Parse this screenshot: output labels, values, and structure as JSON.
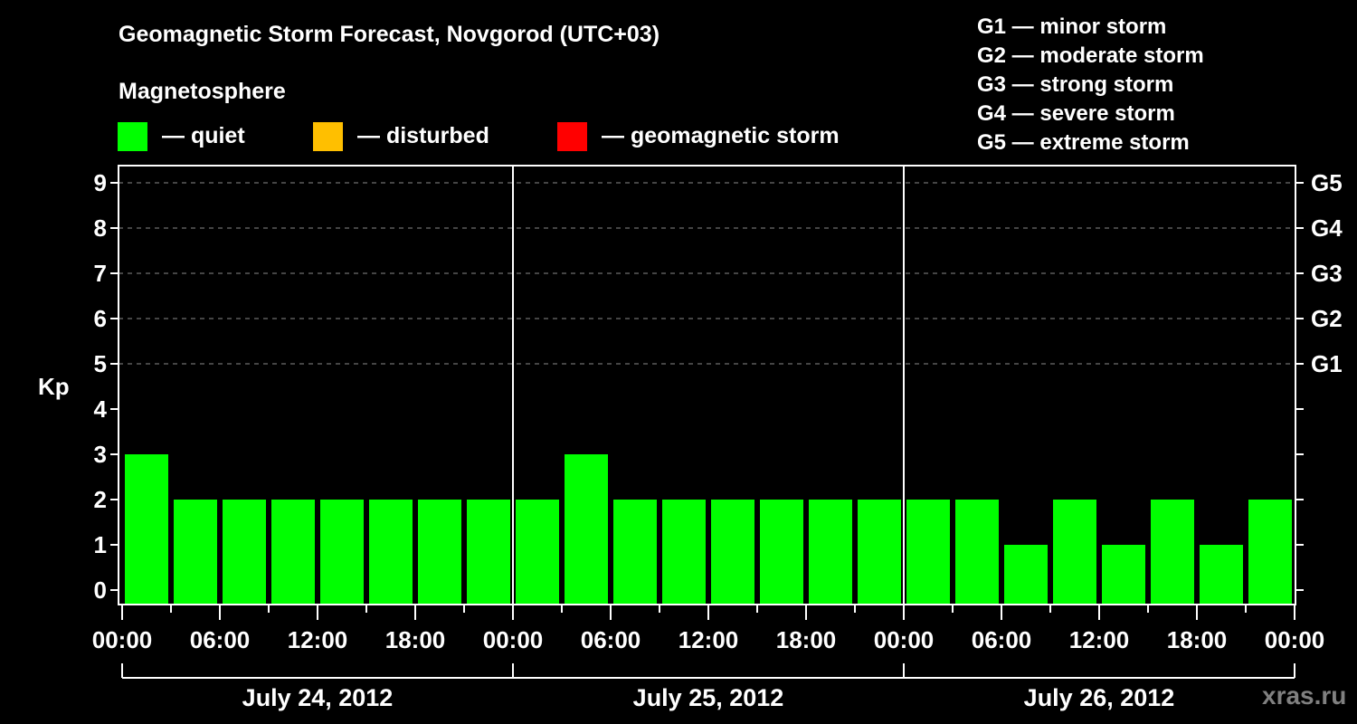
{
  "header": {
    "title": "Geomagnetic Storm Forecast, Novgorod (UTC+03)",
    "subtitle": "Magnetosphere"
  },
  "legend": [
    {
      "label": "— quiet",
      "color": "#00FF00"
    },
    {
      "label": "— disturbed",
      "color": "#FFBF00"
    },
    {
      "label": "— geomagnetic storm",
      "color": "#FF0000"
    }
  ],
  "g_scale_legend": [
    "G1 — minor storm",
    "G2 — moderate storm",
    "G3 — strong storm",
    "G4 — severe storm",
    "G5 — extreme storm"
  ],
  "watermark": "xras.ru",
  "chart_data": {
    "type": "bar",
    "title": "Geomagnetic Storm Forecast, Novgorod (UTC+03)",
    "subtitle": "Magnetosphere",
    "xlabel": "",
    "ylabel": "Kp",
    "ylim": [
      0,
      9
    ],
    "yticks": [
      0,
      1,
      2,
      3,
      4,
      5,
      6,
      7,
      8,
      9
    ],
    "right_axis_labels": {
      "5": "G1",
      "6": "G2",
      "7": "G3",
      "8": "G4",
      "9": "G5"
    },
    "grid": {
      "horizontal_dashed_at": [
        5,
        6,
        7,
        8,
        9
      ]
    },
    "interval_hours": 3,
    "days": [
      {
        "label": "July 24, 2012",
        "values": [
          3,
          2,
          2,
          2,
          2,
          2,
          2,
          2
        ]
      },
      {
        "label": "July 25, 2012",
        "values": [
          2,
          3,
          2,
          2,
          2,
          2,
          2,
          2
        ]
      },
      {
        "label": "July 26, 2012",
        "values": [
          2,
          2,
          1,
          2,
          1,
          2,
          1,
          2
        ]
      }
    ],
    "x_tick_labels": [
      "00:00",
      "06:00",
      "12:00",
      "18:00",
      "00:00",
      "06:00",
      "12:00",
      "18:00",
      "00:00",
      "06:00",
      "12:00",
      "18:00",
      "00:00"
    ],
    "categories": [
      "07-24 00:00",
      "07-24 03:00",
      "07-24 06:00",
      "07-24 09:00",
      "07-24 12:00",
      "07-24 15:00",
      "07-24 18:00",
      "07-24 21:00",
      "07-25 00:00",
      "07-25 03:00",
      "07-25 06:00",
      "07-25 09:00",
      "07-25 12:00",
      "07-25 15:00",
      "07-25 18:00",
      "07-25 21:00",
      "07-26 00:00",
      "07-26 03:00",
      "07-26 06:00",
      "07-26 09:00",
      "07-26 12:00",
      "07-26 15:00",
      "07-26 18:00",
      "07-26 21:00"
    ],
    "values": [
      3,
      2,
      2,
      2,
      2,
      2,
      2,
      2,
      2,
      3,
      2,
      2,
      2,
      2,
      2,
      2,
      2,
      2,
      1,
      2,
      1,
      2,
      1,
      2
    ],
    "bar_colors": {
      "quiet": "#00FF00",
      "disturbed": "#FFBF00",
      "storm": "#FF0000"
    },
    "legend": [
      "quiet",
      "disturbed",
      "geomagnetic storm"
    ]
  }
}
